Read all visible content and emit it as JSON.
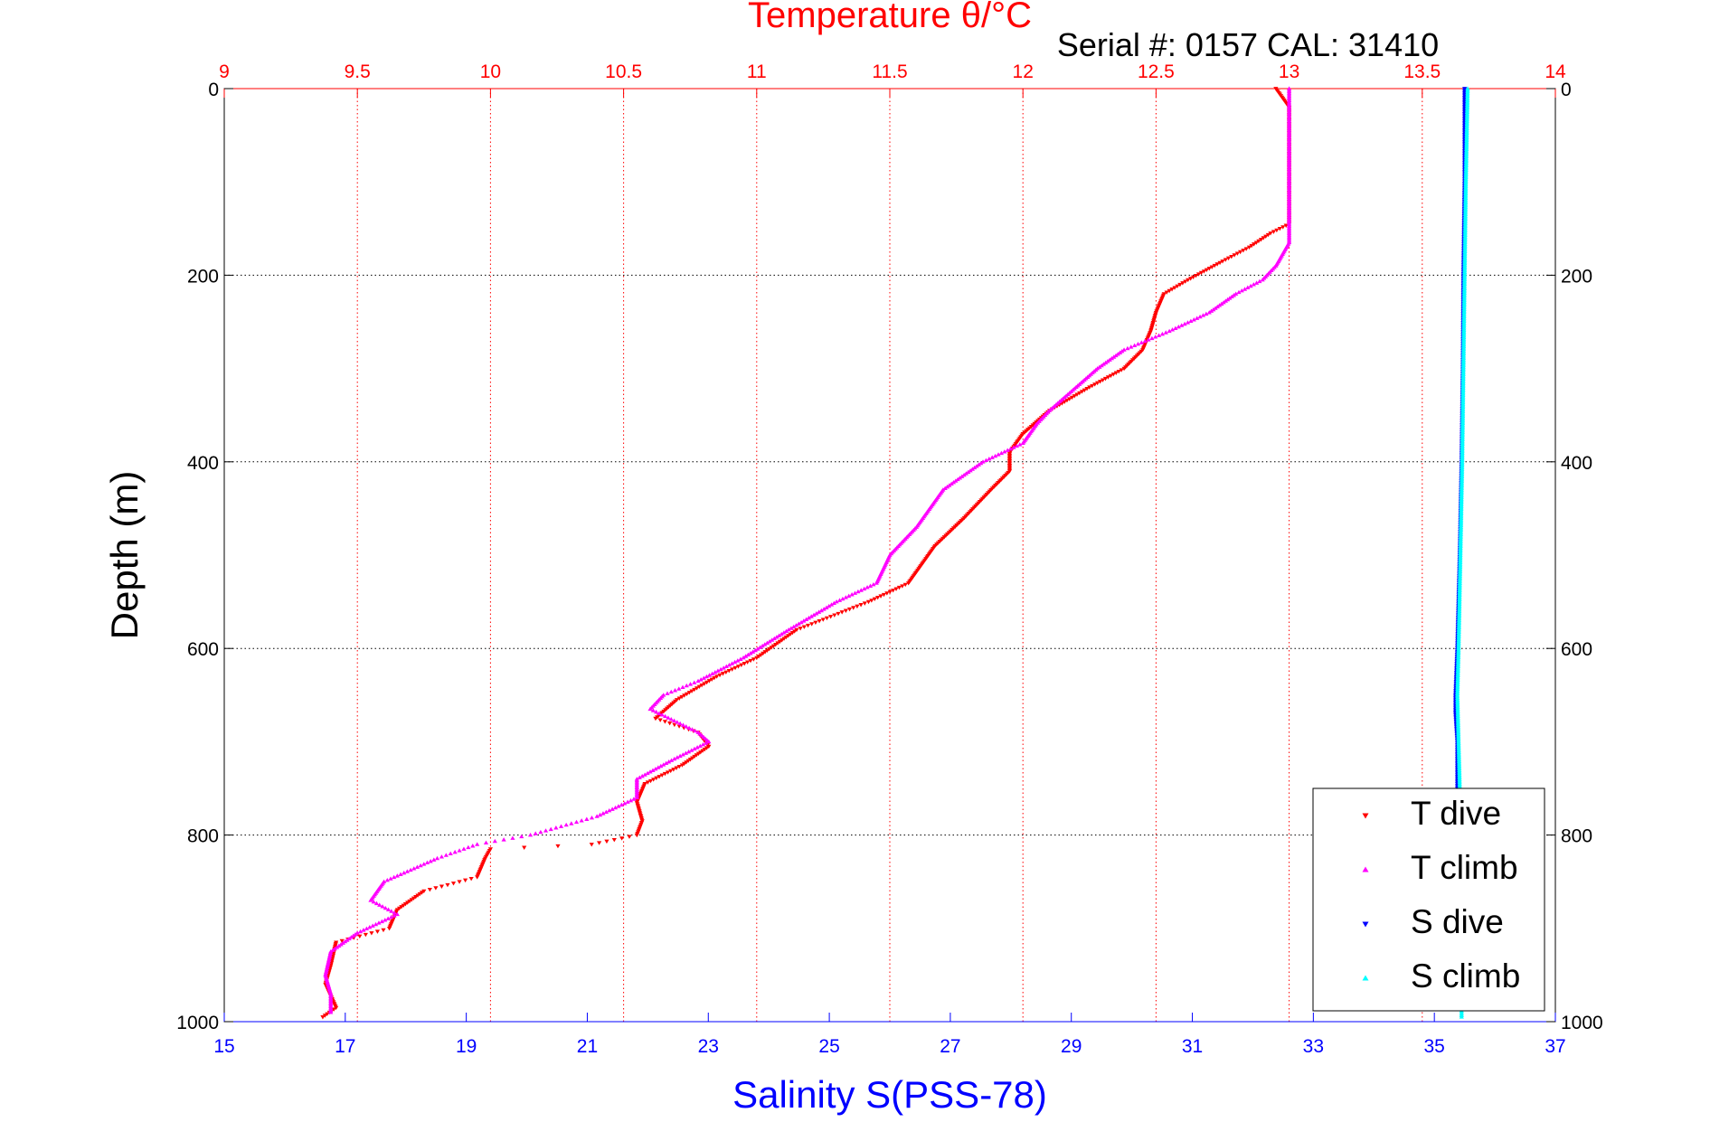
{
  "chart_data": {
    "type": "scatter",
    "title": "Temperature θ/°C",
    "subtitle": "Serial #: 0157  CAL: 31410",
    "xlabel": "Salinity S(PSS-78)",
    "x2label": "Temperature θ/°C",
    "ylabel": "Depth (m)",
    "ylim": [
      0,
      1000
    ],
    "y_reversed": true,
    "salinity_lim": [
      15,
      37
    ],
    "temperature_lim": [
      9,
      14
    ],
    "salinity_ticks": [
      "15",
      "17",
      "19",
      "21",
      "23",
      "25",
      "27",
      "29",
      "31",
      "33",
      "35",
      "37"
    ],
    "temperature_ticks": [
      "9",
      "9.5",
      "10",
      "10.5",
      "11",
      "11.5",
      "12",
      "12.5",
      "13",
      "13.5",
      "14"
    ],
    "depth_ticks": [
      "0",
      "200",
      "400",
      "600",
      "800",
      "1000"
    ],
    "grid": true,
    "legend_position": "bottom-right",
    "series": [
      {
        "name": "T dive",
        "axis": "temperature",
        "color": "#ff0000",
        "marker": "triangle-down",
        "points": [
          [
            12.95,
            0
          ],
          [
            13.0,
            20
          ],
          [
            13.0,
            60
          ],
          [
            13.0,
            100
          ],
          [
            13.0,
            145
          ],
          [
            12.93,
            155
          ],
          [
            12.85,
            170
          ],
          [
            12.75,
            185
          ],
          [
            12.62,
            205
          ],
          [
            12.53,
            220
          ],
          [
            12.5,
            240
          ],
          [
            12.48,
            260
          ],
          [
            12.45,
            280
          ],
          [
            12.38,
            300
          ],
          [
            12.25,
            320
          ],
          [
            12.1,
            345
          ],
          [
            12.0,
            370
          ],
          [
            11.95,
            390
          ],
          [
            11.95,
            410
          ],
          [
            11.88,
            430
          ],
          [
            11.78,
            460
          ],
          [
            11.67,
            490
          ],
          [
            11.62,
            510
          ],
          [
            11.57,
            530
          ],
          [
            11.42,
            550
          ],
          [
            11.15,
            580
          ],
          [
            11.0,
            610
          ],
          [
            10.85,
            630
          ],
          [
            10.7,
            655
          ],
          [
            10.62,
            675
          ],
          [
            10.78,
            690
          ],
          [
            10.82,
            705
          ],
          [
            10.72,
            725
          ],
          [
            10.58,
            745
          ],
          [
            10.55,
            765
          ],
          [
            10.57,
            785
          ],
          [
            10.55,
            800
          ],
          [
            10.38,
            810
          ],
          [
            10.0,
            815
          ],
          [
            9.98,
            825
          ],
          [
            9.95,
            845
          ],
          [
            9.75,
            860
          ],
          [
            9.65,
            880
          ],
          [
            9.62,
            900
          ],
          [
            9.42,
            915
          ],
          [
            9.4,
            940
          ],
          [
            9.38,
            960
          ],
          [
            9.42,
            985
          ],
          [
            9.37,
            995
          ]
        ]
      },
      {
        "name": "T climb",
        "axis": "temperature",
        "color": "#ff00ff",
        "marker": "triangle-up",
        "points": [
          [
            13.0,
            0
          ],
          [
            13.0,
            40
          ],
          [
            13.0,
            80
          ],
          [
            13.0,
            120
          ],
          [
            13.0,
            165
          ],
          [
            12.95,
            190
          ],
          [
            12.9,
            205
          ],
          [
            12.8,
            220
          ],
          [
            12.7,
            240
          ],
          [
            12.55,
            260
          ],
          [
            12.38,
            280
          ],
          [
            12.28,
            300
          ],
          [
            12.2,
            320
          ],
          [
            12.1,
            345
          ],
          [
            12.05,
            360
          ],
          [
            12.0,
            380
          ],
          [
            11.85,
            400
          ],
          [
            11.7,
            430
          ],
          [
            11.6,
            470
          ],
          [
            11.5,
            500
          ],
          [
            11.45,
            530
          ],
          [
            11.3,
            550
          ],
          [
            11.12,
            580
          ],
          [
            10.95,
            610
          ],
          [
            10.78,
            635
          ],
          [
            10.65,
            650
          ],
          [
            10.6,
            665
          ],
          [
            10.78,
            690
          ],
          [
            10.82,
            700
          ],
          [
            10.68,
            720
          ],
          [
            10.55,
            740
          ],
          [
            10.55,
            760
          ],
          [
            10.4,
            780
          ],
          [
            10.15,
            800
          ],
          [
            9.95,
            810
          ],
          [
            9.8,
            825
          ],
          [
            9.6,
            850
          ],
          [
            9.55,
            870
          ],
          [
            9.65,
            885
          ],
          [
            9.5,
            905
          ],
          [
            9.4,
            925
          ],
          [
            9.38,
            950
          ],
          [
            9.4,
            970
          ],
          [
            9.4,
            990
          ]
        ]
      },
      {
        "name": "S dive",
        "axis": "salinity",
        "color": "#0000ff",
        "marker": "triangle-down",
        "points": [
          [
            35.5,
            0
          ],
          [
            35.5,
            100
          ],
          [
            35.48,
            200
          ],
          [
            35.47,
            300
          ],
          [
            35.45,
            400
          ],
          [
            35.42,
            500
          ],
          [
            35.38,
            600
          ],
          [
            35.35,
            650
          ],
          [
            35.35,
            670
          ],
          [
            35.38,
            700
          ],
          [
            35.38,
            750
          ]
        ]
      },
      {
        "name": "S climb",
        "axis": "salinity",
        "color": "#00ffff",
        "marker": "triangle-up",
        "points": [
          [
            35.55,
            0
          ],
          [
            35.52,
            100
          ],
          [
            35.5,
            200
          ],
          [
            35.48,
            300
          ],
          [
            35.46,
            400
          ],
          [
            35.43,
            500
          ],
          [
            35.4,
            600
          ],
          [
            35.38,
            650
          ],
          [
            35.4,
            700
          ],
          [
            35.42,
            750
          ],
          [
            35.42,
            800
          ],
          [
            35.43,
            850
          ],
          [
            35.45,
            900
          ],
          [
            35.45,
            950
          ],
          [
            35.45,
            995
          ]
        ]
      }
    ]
  }
}
